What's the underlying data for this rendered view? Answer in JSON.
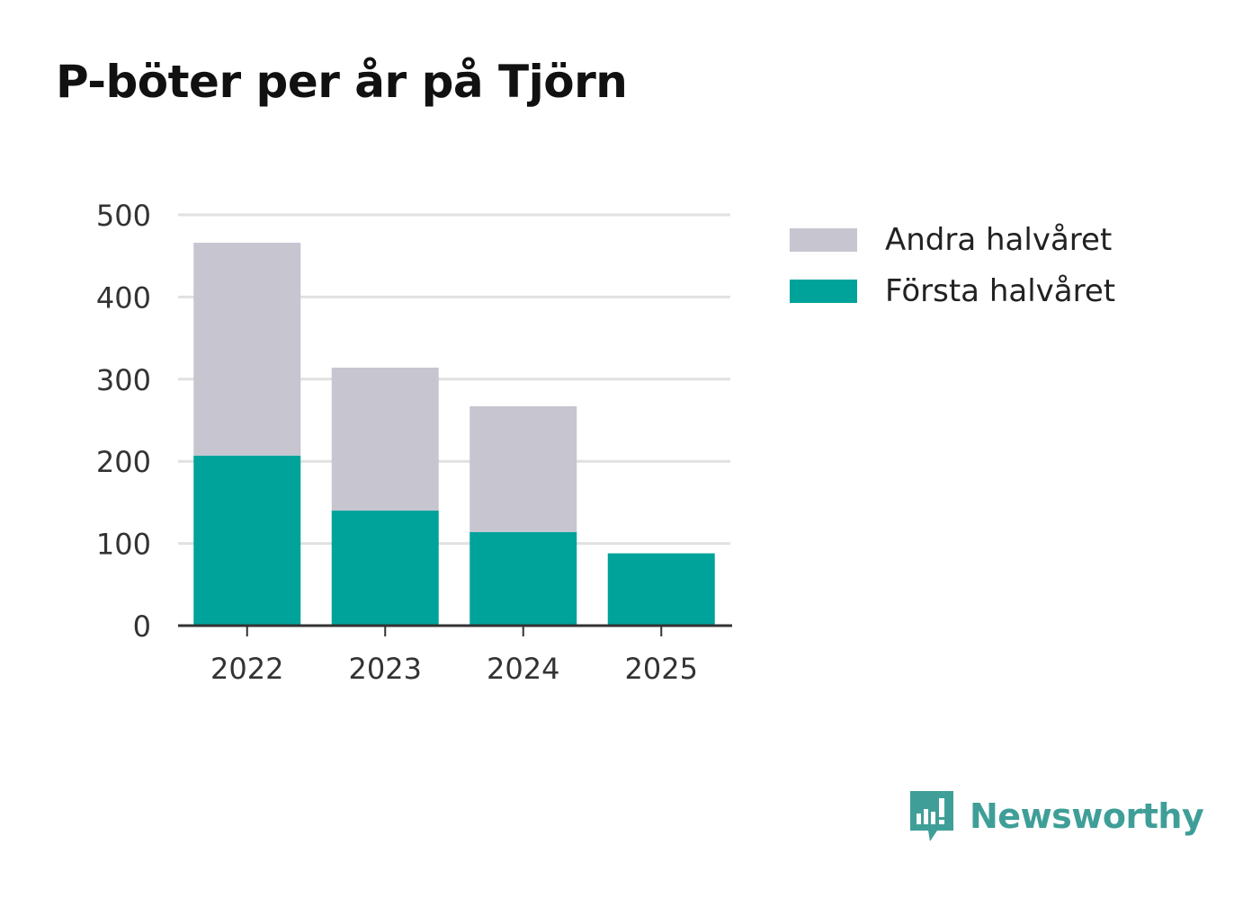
{
  "chart_data": {
    "type": "bar",
    "stacked": true,
    "title": "P-böter per år på Tjörn",
    "categories": [
      "2022",
      "2023",
      "2024",
      "2025"
    ],
    "series": [
      {
        "name": "Första halvåret",
        "color": "#00a39a",
        "values": [
          207,
          140,
          114,
          88
        ]
      },
      {
        "name": "Andra halvåret",
        "color": "#c6c5d0",
        "values": [
          259,
          174,
          153,
          0
        ]
      }
    ],
    "ylim": [
      0,
      500
    ],
    "yticks": [
      0,
      100,
      200,
      300,
      400,
      500
    ],
    "xlabel": "",
    "ylabel": "",
    "grid": true,
    "legend_position": "right"
  },
  "legend": {
    "items": [
      {
        "label": "Andra halvåret",
        "color": "#c6c5d0"
      },
      {
        "label": "Första halvåret",
        "color": "#00a39a"
      }
    ]
  },
  "brand": {
    "name": "Newsworthy",
    "icon": "newsworthy-logo-icon",
    "color": "#3f9f98"
  }
}
